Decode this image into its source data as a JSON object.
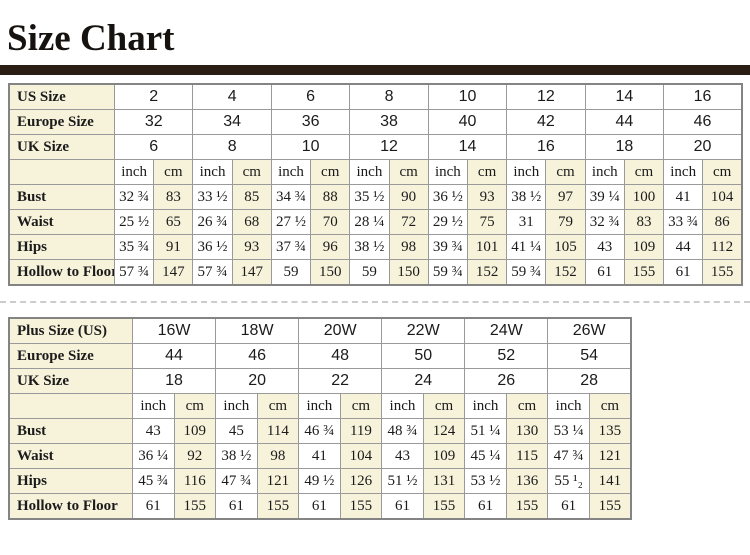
{
  "title": "Size Chart",
  "colors": {
    "cream_cell": "#f7f3db",
    "inner_border": "#9a9a9a",
    "outer_border": "#848484",
    "title_rule_bar": "#2a1d13",
    "dashed_separator": "#cccccc",
    "text": "#1b1b1b"
  },
  "tables": [
    {
      "name": "regular-size-table",
      "header_rows": [
        {
          "label": "US Size",
          "values": [
            "2",
            "4",
            "6",
            "8",
            "10",
            "12",
            "14",
            "16"
          ]
        },
        {
          "label": "Europe Size",
          "values": [
            "32",
            "34",
            "36",
            "38",
            "40",
            "42",
            "44",
            "46"
          ]
        },
        {
          "label": "UK Size",
          "values": [
            "6",
            "8",
            "10",
            "12",
            "14",
            "16",
            "18",
            "20"
          ]
        }
      ],
      "unit_row_label": "",
      "units": [
        "inch",
        "cm"
      ],
      "measure_rows": [
        {
          "label": "Bust",
          "inch": [
            "32 ¾",
            "33 ½",
            "34 ¾",
            "35 ½",
            "36 ½",
            "38 ½",
            "39 ¼",
            "41"
          ],
          "cm": [
            "83",
            "85",
            "88",
            "90",
            "93",
            "97",
            "100",
            "104"
          ]
        },
        {
          "label": "Waist",
          "inch": [
            "25 ½",
            "26 ¾",
            "27 ½",
            "28 ¼",
            "29 ½",
            "31",
            "32 ¾",
            "33 ¾"
          ],
          "cm": [
            "65",
            "68",
            "70",
            "72",
            "75",
            "79",
            "83",
            "86"
          ]
        },
        {
          "label": "Hips",
          "inch": [
            "35 ¾",
            "36 ½",
            "37 ¾",
            "38 ½",
            "39 ¾",
            "41 ¼",
            "43",
            "44"
          ],
          "cm": [
            "91",
            "93",
            "96",
            "98",
            "101",
            "105",
            "109",
            "112"
          ]
        },
        {
          "label": "Hollow to Floor",
          "inch": [
            "57 ¾",
            "57 ¾",
            "59",
            "59",
            "59 ¾",
            "59 ¾",
            "61",
            "61"
          ],
          "cm": [
            "147",
            "147",
            "150",
            "150",
            "152",
            "152",
            "155",
            "155"
          ]
        }
      ]
    },
    {
      "name": "plus-size-table",
      "header_rows": [
        {
          "label": "Plus Size (US)",
          "values": [
            "16W",
            "18W",
            "20W",
            "22W",
            "24W",
            "26W"
          ]
        },
        {
          "label": "Europe Size",
          "values": [
            "44",
            "46",
            "48",
            "50",
            "52",
            "54"
          ]
        },
        {
          "label": "UK Size",
          "values": [
            "18",
            "20",
            "22",
            "24",
            "26",
            "28"
          ]
        }
      ],
      "unit_row_label": "",
      "units": [
        "inch",
        "cm"
      ],
      "measure_rows": [
        {
          "label": "Bust",
          "inch": [
            "43",
            "45",
            "46 ¾",
            "48 ¾",
            "51 ¼",
            "53 ¼"
          ],
          "cm": [
            "109",
            "114",
            "119",
            "124",
            "130",
            "135"
          ]
        },
        {
          "label": "Waist",
          "inch": [
            "36 ¼",
            "38 ½",
            "41",
            "43",
            "45 ¼",
            "47 ¾"
          ],
          "cm": [
            "92",
            "98",
            "104",
            "109",
            "115",
            "121"
          ]
        },
        {
          "label": "Hips",
          "inch": [
            "45 ¾",
            "47 ¾",
            "49 ½",
            "51 ½",
            "53 ½",
            "55 ¹₂"
          ],
          "cm": [
            "116",
            "121",
            "126",
            "131",
            "136",
            "141"
          ]
        },
        {
          "label": "Hollow to Floor",
          "inch": [
            "61",
            "61",
            "61",
            "61",
            "61",
            "61"
          ],
          "cm": [
            "155",
            "155",
            "155",
            "155",
            "155",
            "155"
          ]
        }
      ]
    }
  ]
}
